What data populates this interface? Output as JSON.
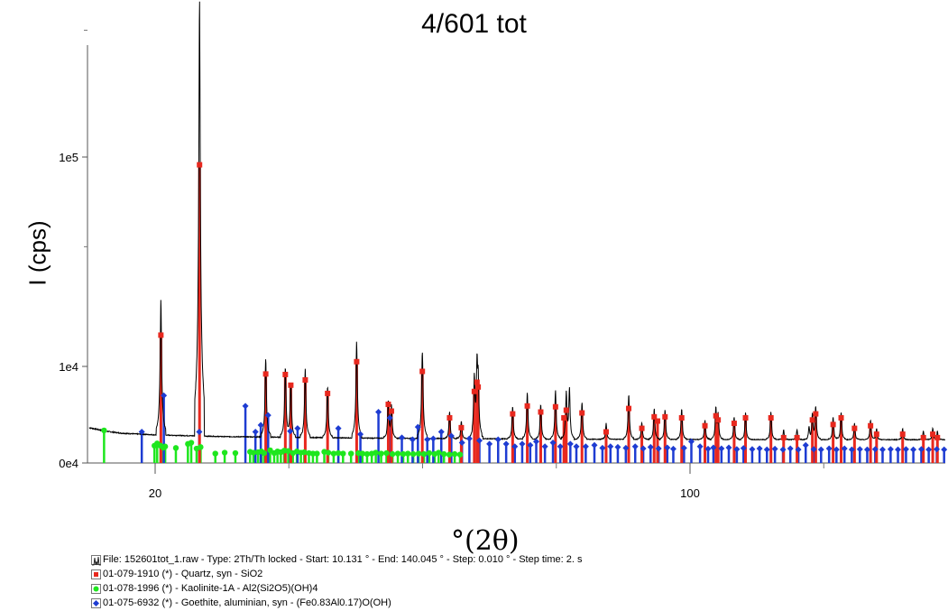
{
  "chart_data": {
    "type": "line",
    "title": "4/601 tot",
    "xlabel": "°(2θ)",
    "ylabel": "I (cps)",
    "xlim": [
      10.131,
      140.045
    ],
    "y_scale": "sqrt",
    "x_ticks": [
      {
        "value": 20,
        "label": "20"
      },
      {
        "value": 100,
        "label": "100"
      }
    ],
    "y_ticks": [
      {
        "value": 0,
        "label": "0e4"
      },
      {
        "value": 10000,
        "label": "1e4"
      },
      {
        "value": 100000,
        "label": "1e5"
      }
    ],
    "pattern": {
      "name": "File: 152601tot_1.raw - Type: 2Th/Th locked - Start: 10.131 ° - End: 140.045 ° - Step: 0.010 ° - Step time: 2. s",
      "background": [
        [
          10.13,
          1350
        ],
        [
          12.5,
          1100
        ],
        [
          15,
          960
        ],
        [
          20,
          860
        ],
        [
          30,
          760
        ],
        [
          50,
          680
        ],
        [
          80,
          620
        ],
        [
          110,
          600
        ],
        [
          140,
          590
        ]
      ],
      "peaks": [
        {
          "x": 20.86,
          "y": 28000
        },
        {
          "x": 26.64,
          "y": 230000
        },
        {
          "x": 36.54,
          "y": 11500
        },
        {
          "x": 39.47,
          "y": 10000
        },
        {
          "x": 40.29,
          "y": 7000
        },
        {
          "x": 42.45,
          "y": 9300
        },
        {
          "x": 45.79,
          "y": 6200
        },
        {
          "x": 50.14,
          "y": 15500
        },
        {
          "x": 54.87,
          "y": 4200
        },
        {
          "x": 55.34,
          "y": 3600
        },
        {
          "x": 59.96,
          "y": 13500
        },
        {
          "x": 64.04,
          "y": 2800
        },
        {
          "x": 65.79,
          "y": 1900
        },
        {
          "x": 67.74,
          "y": 8000
        },
        {
          "x": 68.14,
          "y": 11000
        },
        {
          "x": 68.31,
          "y": 7500
        },
        {
          "x": 73.47,
          "y": 3400
        },
        {
          "x": 75.66,
          "y": 5300
        },
        {
          "x": 77.67,
          "y": 3700
        },
        {
          "x": 79.88,
          "y": 5600
        },
        {
          "x": 81.49,
          "y": 5300
        },
        {
          "x": 81.96,
          "y": 6000
        },
        {
          "x": 83.84,
          "y": 4000
        },
        {
          "x": 87.45,
          "y": 1700
        },
        {
          "x": 90.83,
          "y": 5000
        },
        {
          "x": 92.79,
          "y": 1800
        },
        {
          "x": 94.64,
          "y": 3200
        },
        {
          "x": 96.26,
          "y": 3100
        },
        {
          "x": 98.75,
          "y": 3200
        },
        {
          "x": 102.23,
          "y": 2000
        },
        {
          "x": 103.87,
          "y": 3400
        },
        {
          "x": 104.2,
          "y": 2600
        },
        {
          "x": 106.6,
          "y": 2300
        },
        {
          "x": 108.3,
          "y": 2700
        },
        {
          "x": 112.1,
          "y": 2800
        },
        {
          "x": 114.0,
          "y": 1200
        },
        {
          "x": 116.0,
          "y": 1200
        },
        {
          "x": 117.8,
          "y": 1400
        },
        {
          "x": 118.3,
          "y": 2600
        },
        {
          "x": 118.8,
          "y": 3500
        },
        {
          "x": 121.4,
          "y": 2300
        },
        {
          "x": 122.6,
          "y": 2800
        },
        {
          "x": 124.6,
          "y": 1700
        },
        {
          "x": 127.0,
          "y": 2000
        },
        {
          "x": 127.9,
          "y": 1300
        },
        {
          "x": 131.8,
          "y": 1300
        },
        {
          "x": 134.9,
          "y": 1100
        },
        {
          "x": 136.3,
          "y": 1300
        },
        {
          "x": 137.0,
          "y": 1100
        },
        {
          "x": 139.0,
          "y": 2500
        },
        {
          "x": 139.9,
          "y": 3100
        }
      ]
    },
    "phases": [
      {
        "name": "01-079-1910 (*) - Quartz, syn - SiO2",
        "color": "#e8281e",
        "marker": "square",
        "sticks": [
          [
            20.86,
            17500
          ],
          [
            26.64,
            95000
          ],
          [
            36.54,
            8500
          ],
          [
            39.47,
            8400
          ],
          [
            40.29,
            6500
          ],
          [
            42.45,
            7400
          ],
          [
            45.79,
            5200
          ],
          [
            50.14,
            11000
          ],
          [
            54.87,
            3700
          ],
          [
            55.34,
            2900
          ],
          [
            59.96,
            9000
          ],
          [
            64.04,
            2200
          ],
          [
            65.79,
            1350
          ],
          [
            67.74,
            5500
          ],
          [
            68.14,
            7000
          ],
          [
            68.31,
            6200
          ],
          [
            73.47,
            2600
          ],
          [
            75.66,
            3500
          ],
          [
            77.67,
            2800
          ],
          [
            79.88,
            3400
          ],
          [
            81.14,
            2200
          ],
          [
            81.49,
            3000
          ],
          [
            83.84,
            2700
          ],
          [
            87.45,
            1050
          ],
          [
            90.83,
            3200
          ],
          [
            92.79,
            1300
          ],
          [
            94.64,
            2300
          ],
          [
            95.14,
            1900
          ],
          [
            96.26,
            2300
          ],
          [
            98.75,
            2200
          ],
          [
            102.23,
            1500
          ],
          [
            103.87,
            2400
          ],
          [
            104.2,
            2000
          ],
          [
            106.6,
            1700
          ],
          [
            108.3,
            2200
          ],
          [
            112.1,
            2200
          ],
          [
            114.0,
            700
          ],
          [
            116.0,
            700
          ],
          [
            118.3,
            2000
          ],
          [
            118.8,
            2600
          ],
          [
            121.4,
            1600
          ],
          [
            122.6,
            2200
          ],
          [
            124.6,
            1300
          ],
          [
            127.0,
            1500
          ],
          [
            127.9,
            900
          ],
          [
            131.8,
            900
          ],
          [
            134.9,
            700
          ],
          [
            136.3,
            900
          ],
          [
            137.0,
            700
          ],
          [
            139.0,
            2000
          ],
          [
            139.9,
            2500
          ]
        ]
      },
      {
        "name": "01-078-1996 (*) - Kaolinite-1A - Al2(Si2O5)(OH)4",
        "color": "#1ee61e",
        "marker": "circle",
        "sticks": [
          [
            12.36,
            1150
          ],
          [
            19.9,
            330
          ],
          [
            20.3,
            420
          ],
          [
            20.8,
            330
          ],
          [
            21.2,
            260
          ],
          [
            21.5,
            300
          ],
          [
            23.1,
            250
          ],
          [
            24.9,
            400
          ],
          [
            25.4,
            450
          ],
          [
            26.2,
            230
          ],
          [
            26.8,
            280
          ],
          [
            29.0,
            100
          ],
          [
            30.4,
            120
          ],
          [
            32.0,
            110
          ],
          [
            34.2,
            140
          ],
          [
            34.7,
            120
          ],
          [
            35.4,
            130
          ],
          [
            35.9,
            150
          ],
          [
            36.3,
            110
          ],
          [
            37.2,
            180
          ],
          [
            37.8,
            110
          ],
          [
            38.3,
            150
          ],
          [
            38.8,
            130
          ],
          [
            39.3,
            170
          ],
          [
            39.9,
            160
          ],
          [
            40.6,
            110
          ],
          [
            41.2,
            150
          ],
          [
            41.8,
            120
          ],
          [
            42.3,
            130
          ],
          [
            43.0,
            110
          ],
          [
            43.6,
            100
          ],
          [
            44.2,
            100
          ],
          [
            45.3,
            140
          ],
          [
            45.9,
            120
          ],
          [
            46.7,
            100
          ],
          [
            47.4,
            110
          ],
          [
            48.1,
            100
          ],
          [
            49.3,
            100
          ],
          [
            50.4,
            110
          ],
          [
            51.0,
            100
          ],
          [
            51.7,
            90
          ],
          [
            52.4,
            100
          ],
          [
            53.0,
            120
          ],
          [
            53.8,
            100
          ],
          [
            54.6,
            110
          ],
          [
            55.5,
            90
          ],
          [
            56.3,
            100
          ],
          [
            57.1,
            90
          ],
          [
            57.8,
            100
          ],
          [
            58.6,
            90
          ],
          [
            59.4,
            100
          ],
          [
            60.2,
            90
          ],
          [
            61.0,
            110
          ],
          [
            61.8,
            90
          ],
          [
            62.4,
            120
          ],
          [
            63.2,
            90
          ],
          [
            64.0,
            80
          ],
          [
            64.8,
            90
          ],
          [
            65.6,
            80
          ]
        ]
      },
      {
        "name": "01-075-6932 (*) - Goethite, aluminian, syn - (Fe0.83Al0.17)O(OH)",
        "color": "#1e3cd2",
        "marker": "diamond",
        "sticks": [
          [
            18.0,
            1050
          ],
          [
            21.3,
            4900
          ],
          [
            26.6,
            1050
          ],
          [
            33.5,
            3500
          ],
          [
            35.0,
            1050
          ],
          [
            35.8,
            1550
          ],
          [
            36.9,
            2450
          ],
          [
            40.2,
            1100
          ],
          [
            41.3,
            1300
          ],
          [
            47.4,
            1300
          ],
          [
            50.7,
            900
          ],
          [
            53.4,
            2800
          ],
          [
            55.1,
            2200
          ],
          [
            56.9,
            700
          ],
          [
            58.5,
            600
          ],
          [
            59.3,
            1400
          ],
          [
            60.7,
            600
          ],
          [
            61.6,
            650
          ],
          [
            62.8,
            1050
          ],
          [
            64.3,
            800
          ],
          [
            65.9,
            450
          ],
          [
            67.0,
            650
          ],
          [
            68.5,
            550
          ],
          [
            70.0,
            400
          ],
          [
            71.3,
            600
          ],
          [
            72.5,
            400
          ],
          [
            73.8,
            300
          ],
          [
            74.9,
            400
          ],
          [
            76.1,
            350
          ],
          [
            77.0,
            500
          ],
          [
            78.3,
            300
          ],
          [
            79.5,
            450
          ],
          [
            80.6,
            300
          ],
          [
            82.1,
            400
          ],
          [
            83.0,
            300
          ],
          [
            84.4,
            300
          ],
          [
            85.7,
            350
          ],
          [
            86.9,
            250
          ],
          [
            88.1,
            300
          ],
          [
            89.2,
            280
          ],
          [
            90.4,
            250
          ],
          [
            91.8,
            300
          ],
          [
            93.0,
            230
          ],
          [
            94.1,
            280
          ],
          [
            95.3,
            230
          ],
          [
            96.6,
            260
          ],
          [
            97.5,
            220
          ],
          [
            99.1,
            250
          ],
          [
            100.2,
            500
          ],
          [
            101.5,
            300
          ],
          [
            102.7,
            220
          ],
          [
            103.5,
            260
          ],
          [
            104.7,
            230
          ],
          [
            105.8,
            260
          ],
          [
            107.0,
            210
          ],
          [
            108.0,
            240
          ],
          [
            109.3,
            210
          ],
          [
            110.4,
            230
          ],
          [
            111.5,
            200
          ],
          [
            112.7,
            220
          ],
          [
            113.9,
            200
          ],
          [
            115.0,
            230
          ],
          [
            116.2,
            200
          ],
          [
            117.3,
            350
          ],
          [
            118.5,
            210
          ],
          [
            119.6,
            200
          ],
          [
            120.8,
            230
          ],
          [
            121.9,
            200
          ],
          [
            123.1,
            230
          ],
          [
            124.2,
            200
          ],
          [
            125.4,
            210
          ],
          [
            126.5,
            200
          ],
          [
            127.7,
            210
          ],
          [
            128.8,
            200
          ],
          [
            130.0,
            210
          ],
          [
            131.1,
            200
          ],
          [
            132.3,
            210
          ],
          [
            133.4,
            200
          ],
          [
            134.6,
            210
          ],
          [
            135.7,
            200
          ],
          [
            136.9,
            210
          ],
          [
            138.0,
            200
          ],
          [
            139.2,
            210
          ]
        ]
      }
    ]
  }
}
